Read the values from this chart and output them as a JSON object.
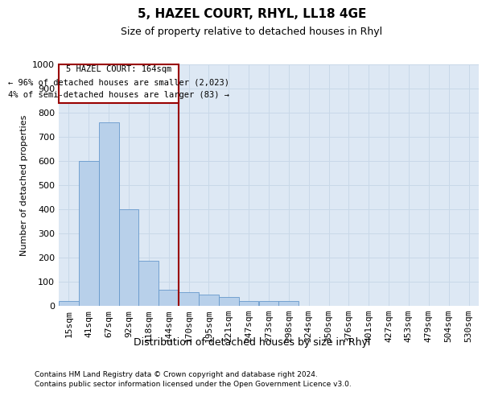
{
  "title": "5, HAZEL COURT, RHYL, LL18 4GE",
  "subtitle": "Size of property relative to detached houses in Rhyl",
  "xlabel": "Distribution of detached houses by size in Rhyl",
  "ylabel": "Number of detached properties",
  "footnote1": "Contains HM Land Registry data © Crown copyright and database right 2024.",
  "footnote2": "Contains public sector information licensed under the Open Government Licence v3.0.",
  "bar_color": "#b8d0ea",
  "bar_edge_color": "#6699cc",
  "grid_color": "#c8d8e8",
  "bg_color": "#dde8f4",
  "subject_line_color": "#990000",
  "subject_bin_index": 6,
  "annotation_text1": "5 HAZEL COURT: 164sqm",
  "annotation_text2": "← 96% of detached houses are smaller (2,023)",
  "annotation_text3": "4% of semi-detached houses are larger (83) →",
  "annotation_box_color": "#990000",
  "ylim": [
    0,
    1000
  ],
  "yticks": [
    0,
    100,
    200,
    300,
    400,
    500,
    600,
    700,
    800,
    900,
    1000
  ],
  "bin_labels": [
    "15sqm",
    "41sqm",
    "67sqm",
    "92sqm",
    "118sqm",
    "144sqm",
    "170sqm",
    "195sqm",
    "221sqm",
    "247sqm",
    "273sqm",
    "298sqm",
    "324sqm",
    "350sqm",
    "376sqm",
    "401sqm",
    "427sqm",
    "453sqm",
    "479sqm",
    "504sqm",
    "530sqm"
  ],
  "bar_heights": [
    20,
    600,
    760,
    400,
    185,
    65,
    55,
    45,
    35,
    20,
    20,
    18,
    0,
    0,
    0,
    0,
    0,
    0,
    0,
    0,
    0
  ],
  "num_bins": 21
}
